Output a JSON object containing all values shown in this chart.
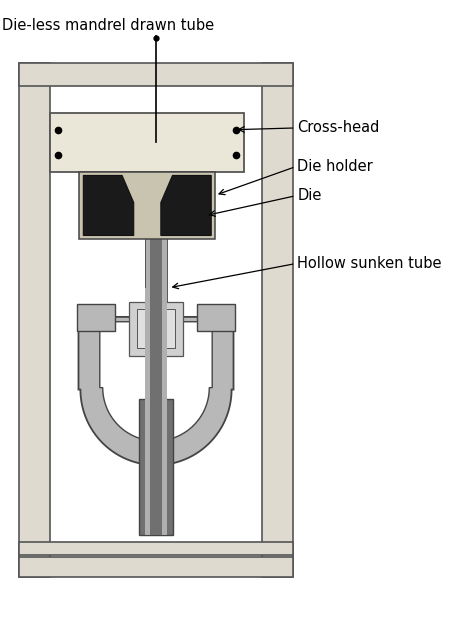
{
  "bg_color": "#ffffff",
  "col_fill": "#dedad0",
  "col_edge": "#555555",
  "crosshead_fill": "#eae6d8",
  "crosshead_edge": "#555555",
  "die_holder_fill": "#c8c4b0",
  "die_holder_edge": "#444444",
  "die_fill": "#1a1a1a",
  "die_edge": "#111111",
  "tube_dark": "#707070",
  "tube_light": "#b0b0b0",
  "tube_edge": "#555555",
  "grip_outer_fill": "#b8b8b8",
  "grip_outer_edge": "#444444",
  "grip_inner_fill": "#ffffff",
  "grip_box_fill": "#d0d0d0",
  "grip_box_edge": "#555555",
  "grip_stem_fill": "#707070",
  "grip_stem_edge": "#444444",
  "title": "Die-less mandrel drawn tube",
  "label_crosshead": "Cross-head",
  "label_die_holder": "Die holder",
  "label_die": "Die",
  "label_hollow": "Hollow sunken tube",
  "font_size": 10.5
}
